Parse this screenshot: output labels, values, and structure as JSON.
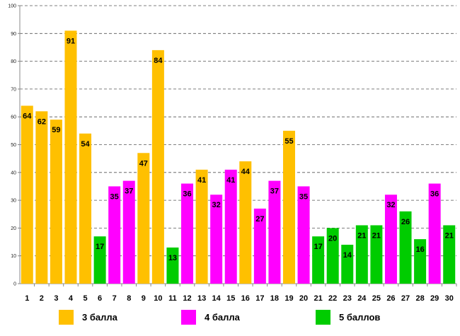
{
  "chart_data": {
    "type": "bar",
    "title": "",
    "xlabel": "",
    "ylabel": "",
    "ylim": [
      0,
      100
    ],
    "yticks": [
      0,
      10,
      20,
      30,
      40,
      50,
      60,
      70,
      80,
      90,
      100
    ],
    "grid": true,
    "categories": [
      "1",
      "2",
      "3",
      "4",
      "5",
      "6",
      "7",
      "8",
      "9",
      "10",
      "11",
      "12",
      "13",
      "14",
      "15",
      "16",
      "17",
      "18",
      "19",
      "20",
      "21",
      "22",
      "23",
      "24",
      "25",
      "26",
      "27",
      "28",
      "29",
      "30"
    ],
    "values": [
      64,
      62,
      59,
      91,
      54,
      17,
      35,
      37,
      47,
      84,
      13,
      36,
      41,
      32,
      41,
      44,
      27,
      37,
      55,
      35,
      17,
      20,
      14,
      21,
      21,
      32,
      26,
      16,
      36,
      21
    ],
    "groups": [
      0,
      0,
      0,
      0,
      0,
      2,
      1,
      1,
      0,
      0,
      2,
      1,
      0,
      1,
      1,
      0,
      1,
      1,
      0,
      1,
      2,
      2,
      2,
      2,
      2,
      1,
      2,
      2,
      1,
      2
    ],
    "legend": [
      {
        "name": "3 балла",
        "color": "#FFC000"
      },
      {
        "name": "4 балла",
        "color": "#FF00FF"
      },
      {
        "name": "5 баллов",
        "color": "#00CC00"
      }
    ],
    "legend_position": "bottom"
  }
}
